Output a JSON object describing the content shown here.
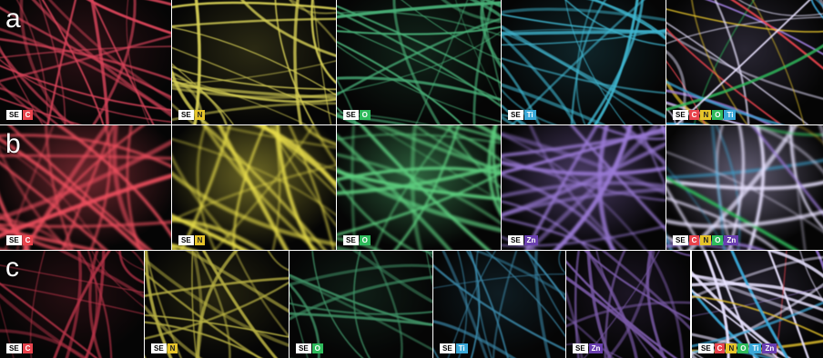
{
  "colors": {
    "C": "#e8434c",
    "N": "#e6c42a",
    "O": "#2fbb5c",
    "Ti": "#3aa8d8",
    "Zn": "#6a3fb0",
    "SE": "#ffffff"
  },
  "rows": [
    {
      "label": "a",
      "panels": [
        {
          "element": "C",
          "legend": [
            "SE",
            "C"
          ],
          "tint": "#d9445a",
          "density": 1.0,
          "blur": 0.6
        },
        {
          "element": "N",
          "legend": [
            "SE",
            "N"
          ],
          "tint": "#d6cf55",
          "density": 1.0,
          "blur": 0.6
        },
        {
          "element": "O",
          "legend": [
            "SE",
            "O"
          ],
          "tint": "#49b078",
          "density": 1.0,
          "blur": 0.6
        },
        {
          "element": "Ti",
          "legend": [
            "SE",
            "Ti"
          ],
          "tint": "#3fb5cf",
          "density": 1.0,
          "blur": 0.6
        },
        {
          "element": "composite",
          "legend": [
            "SE",
            "C",
            "N",
            "O",
            "Ti"
          ],
          "tint": "#c9b8ff",
          "density": 1.0,
          "blur": 0.6,
          "composite": true
        }
      ]
    },
    {
      "label": "b",
      "panels": [
        {
          "element": "C",
          "legend": [
            "SE",
            "C"
          ],
          "tint": "#ee4f5e",
          "density": 1.0,
          "blur": 1.4
        },
        {
          "element": "N",
          "legend": [
            "SE",
            "N"
          ],
          "tint": "#e8dd4a",
          "density": 1.0,
          "blur": 1.4
        },
        {
          "element": "O",
          "legend": [
            "SE",
            "O"
          ],
          "tint": "#5ecf80",
          "density": 1.0,
          "blur": 1.4
        },
        {
          "element": "Zn",
          "legend": [
            "SE",
            "Zn"
          ],
          "tint": "#9a7ad6",
          "density": 1.0,
          "blur": 1.4
        },
        {
          "element": "composite",
          "legend": [
            "SE",
            "C",
            "N",
            "O",
            "Zn"
          ],
          "tint": "#d8ccff",
          "density": 1.0,
          "blur": 1.4,
          "composite": true
        }
      ]
    },
    {
      "label": "c",
      "panels": [
        {
          "element": "C",
          "legend": [
            "SE",
            "C"
          ],
          "tint": "#b83448",
          "density": 0.7,
          "blur": 0.4
        },
        {
          "element": "N",
          "legend": [
            "SE",
            "N"
          ],
          "tint": "#b5ae42",
          "density": 0.7,
          "blur": 0.4
        },
        {
          "element": "O",
          "legend": [
            "SE",
            "O"
          ],
          "tint": "#3e8e64",
          "density": 0.7,
          "blur": 0.4
        },
        {
          "element": "Ti",
          "legend": [
            "SE",
            "Ti"
          ],
          "tint": "#3a87a8",
          "density": 0.7,
          "blur": 0.4
        },
        {
          "element": "Zn",
          "legend": [
            "SE",
            "Zn"
          ],
          "tint": "#7a5aa8",
          "density": 0.7,
          "blur": 0.4
        },
        {
          "element": "composite",
          "legend": [
            "SE",
            "C",
            "N",
            "O",
            "Ti",
            "Zn"
          ],
          "tint": "#b8a8f0",
          "density": 1.0,
          "blur": 0.5,
          "composite": true
        }
      ]
    }
  ]
}
